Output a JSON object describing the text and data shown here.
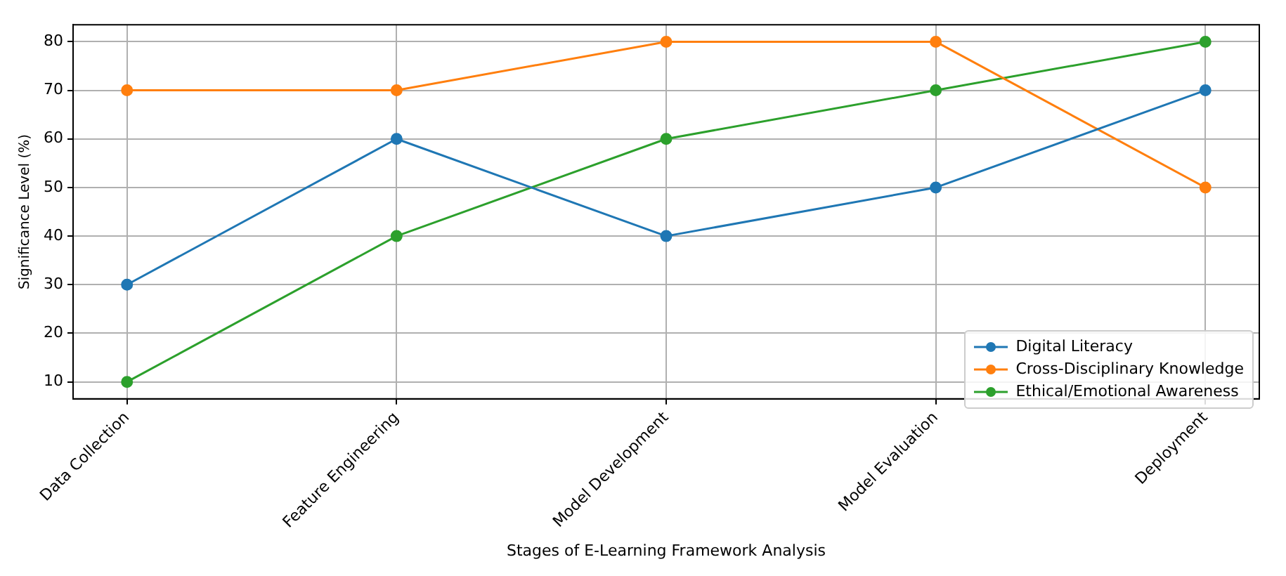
{
  "chart_data": {
    "type": "line",
    "xlabel": "Stages of E-Learning Framework Analysis",
    "ylabel": "Significance Level (%)",
    "categories": [
      "Data Collection",
      "Feature Engineering",
      "Model Development",
      "Model Evaluation",
      "Deployment"
    ],
    "series": [
      {
        "name": "Digital Literacy",
        "color": "#1f77b4",
        "values": [
          30,
          60,
          40,
          50,
          70
        ]
      },
      {
        "name": "Cross-Disciplinary Knowledge",
        "color": "#ff7f0e",
        "values": [
          70,
          70,
          80,
          80,
          50
        ]
      },
      {
        "name": "Ethical/Emotional Awareness",
        "color": "#2ca02c",
        "values": [
          10,
          40,
          60,
          70,
          80
        ]
      }
    ],
    "ylim": [
      6.5,
      83.5
    ],
    "yticks": [
      10,
      20,
      30,
      40,
      50,
      60,
      70,
      80
    ],
    "grid": true,
    "legend": "bottom right",
    "marker": "circle",
    "line_style": "solid"
  }
}
